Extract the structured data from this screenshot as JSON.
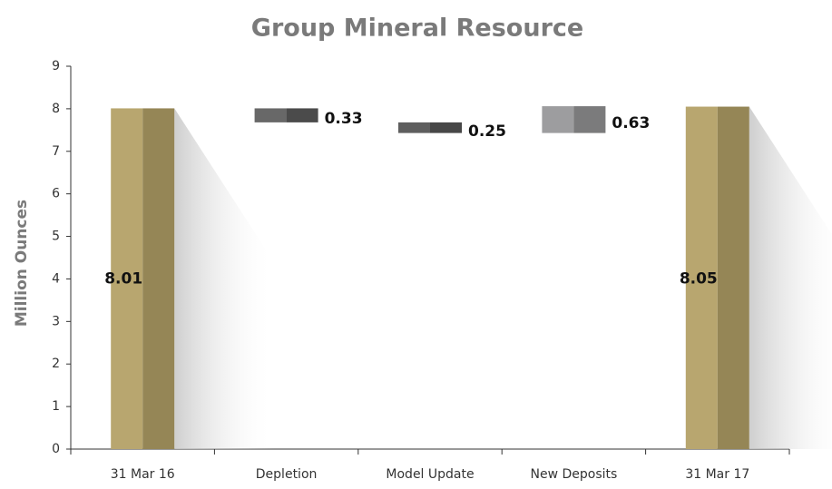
{
  "chart_data": {
    "type": "waterfall",
    "title": "Group Mineral Resource",
    "y_label": "Million Ounces",
    "categories": [
      "31 Mar 16",
      "Depletion",
      "Model Update",
      "New Deposits",
      "31 Mar 17"
    ],
    "values": [
      8.01,
      -0.33,
      -0.25,
      0.63,
      8.05
    ],
    "value_labels": [
      "8.01",
      "0.33",
      "0.25",
      "0.63",
      "8.05"
    ],
    "colors": [
      [
        "#b8a66f",
        "#958656"
      ],
      [
        "#686868",
        "#4b4b4b"
      ],
      [
        "#5e5e5e",
        "#474747"
      ],
      [
        "#9d9d9f",
        "#7b7b7c"
      ],
      [
        "#b8a66f",
        "#958656"
      ]
    ],
    "ylim": [
      0,
      9
    ],
    "yticks": [
      0,
      1,
      2,
      3,
      4,
      5,
      6,
      7,
      8,
      9
    ],
    "grid": false
  }
}
